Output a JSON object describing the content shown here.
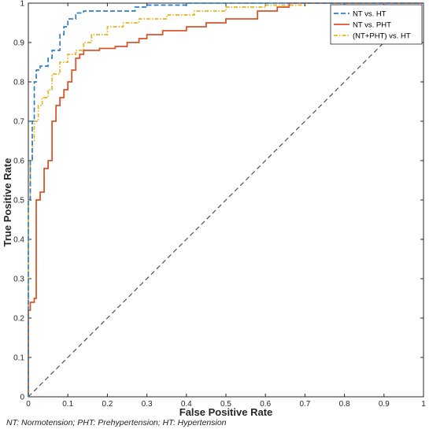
{
  "chart_data": {
    "type": "line",
    "xlabel": "False Positive Rate",
    "ylabel": "True Positive Rate",
    "xlim": [
      0,
      1
    ],
    "ylim": [
      0,
      1
    ],
    "x_ticks": [
      "0",
      "0.1",
      "0.2",
      "0.3",
      "0.4",
      "0.5",
      "0.6",
      "0.7",
      "0.8",
      "0.9",
      "1"
    ],
    "y_ticks": [
      "0",
      "0.1",
      "0.2",
      "0.3",
      "0.4",
      "0.5",
      "0.6",
      "0.7",
      "0.8",
      "0.9",
      "1"
    ],
    "grid": false,
    "legend_position": "top-right",
    "reference_line": {
      "x": [
        0,
        1
      ],
      "y": [
        0,
        1
      ],
      "color": "#404040",
      "style": "dashed"
    },
    "series": [
      {
        "name": "NT  vs. HT",
        "color": "#2f7fc8",
        "style": "dashed",
        "x": [
          0,
          0,
          0.005,
          0.005,
          0.01,
          0.01,
          0.015,
          0.015,
          0.02,
          0.02,
          0.03,
          0.03,
          0.05,
          0.05,
          0.06,
          0.06,
          0.08,
          0.08,
          0.09,
          0.09,
          0.1,
          0.1,
          0.12,
          0.12,
          0.14,
          0.14,
          0.27,
          0.27,
          0.3,
          0.3,
          0.4,
          0.4,
          1
        ],
        "y": [
          0,
          0.5,
          0.5,
          0.6,
          0.6,
          0.7,
          0.7,
          0.8,
          0.8,
          0.83,
          0.83,
          0.84,
          0.84,
          0.86,
          0.86,
          0.88,
          0.88,
          0.92,
          0.92,
          0.94,
          0.94,
          0.96,
          0.96,
          0.975,
          0.975,
          0.98,
          0.98,
          0.99,
          0.99,
          0.995,
          0.995,
          1,
          1
        ]
      },
      {
        "name": "NT vs. PHT",
        "color": "#d9562b",
        "style": "solid",
        "x": [
          0,
          0,
          0.005,
          0.005,
          0.015,
          0.015,
          0.02,
          0.02,
          0.03,
          0.03,
          0.04,
          0.04,
          0.05,
          0.05,
          0.06,
          0.06,
          0.07,
          0.07,
          0.08,
          0.08,
          0.09,
          0.09,
          0.1,
          0.1,
          0.11,
          0.11,
          0.12,
          0.12,
          0.13,
          0.13,
          0.14,
          0.14,
          0.18,
          0.18,
          0.22,
          0.22,
          0.25,
          0.25,
          0.28,
          0.28,
          0.3,
          0.3,
          0.34,
          0.34,
          0.4,
          0.4,
          0.45,
          0.45,
          0.5,
          0.5,
          0.58,
          0.58,
          0.63,
          0.63,
          0.66,
          0.66,
          1
        ],
        "y": [
          0,
          0.22,
          0.22,
          0.24,
          0.24,
          0.25,
          0.25,
          0.5,
          0.5,
          0.52,
          0.52,
          0.58,
          0.58,
          0.6,
          0.6,
          0.7,
          0.7,
          0.74,
          0.74,
          0.76,
          0.76,
          0.78,
          0.78,
          0.8,
          0.8,
          0.83,
          0.83,
          0.86,
          0.86,
          0.87,
          0.87,
          0.88,
          0.88,
          0.885,
          0.885,
          0.89,
          0.89,
          0.9,
          0.9,
          0.91,
          0.91,
          0.92,
          0.92,
          0.93,
          0.93,
          0.94,
          0.94,
          0.95,
          0.95,
          0.96,
          0.96,
          0.98,
          0.98,
          0.99,
          0.99,
          1,
          1
        ]
      },
      {
        "name": "(NT+PHT) vs. HT",
        "color": "#e8b520",
        "style": "dash-dot",
        "x": [
          0,
          0,
          0.005,
          0.005,
          0.01,
          0.01,
          0.015,
          0.015,
          0.025,
          0.025,
          0.035,
          0.035,
          0.05,
          0.05,
          0.06,
          0.06,
          0.08,
          0.08,
          0.1,
          0.1,
          0.12,
          0.12,
          0.14,
          0.14,
          0.16,
          0.16,
          0.2,
          0.2,
          0.24,
          0.24,
          0.28,
          0.28,
          0.35,
          0.35,
          0.42,
          0.42,
          0.5,
          0.5,
          0.6,
          0.6,
          0.7,
          0.7,
          1
        ],
        "y": [
          0,
          0.5,
          0.5,
          0.6,
          0.6,
          0.65,
          0.65,
          0.7,
          0.7,
          0.74,
          0.74,
          0.76,
          0.76,
          0.78,
          0.78,
          0.82,
          0.82,
          0.85,
          0.85,
          0.87,
          0.87,
          0.88,
          0.88,
          0.9,
          0.9,
          0.92,
          0.92,
          0.94,
          0.94,
          0.95,
          0.95,
          0.96,
          0.96,
          0.97,
          0.97,
          0.98,
          0.98,
          0.99,
          0.99,
          0.995,
          0.995,
          1,
          1
        ]
      }
    ]
  },
  "footnote": "NT: Normotension; PHT: Prehypertension; HT: Hypertension"
}
